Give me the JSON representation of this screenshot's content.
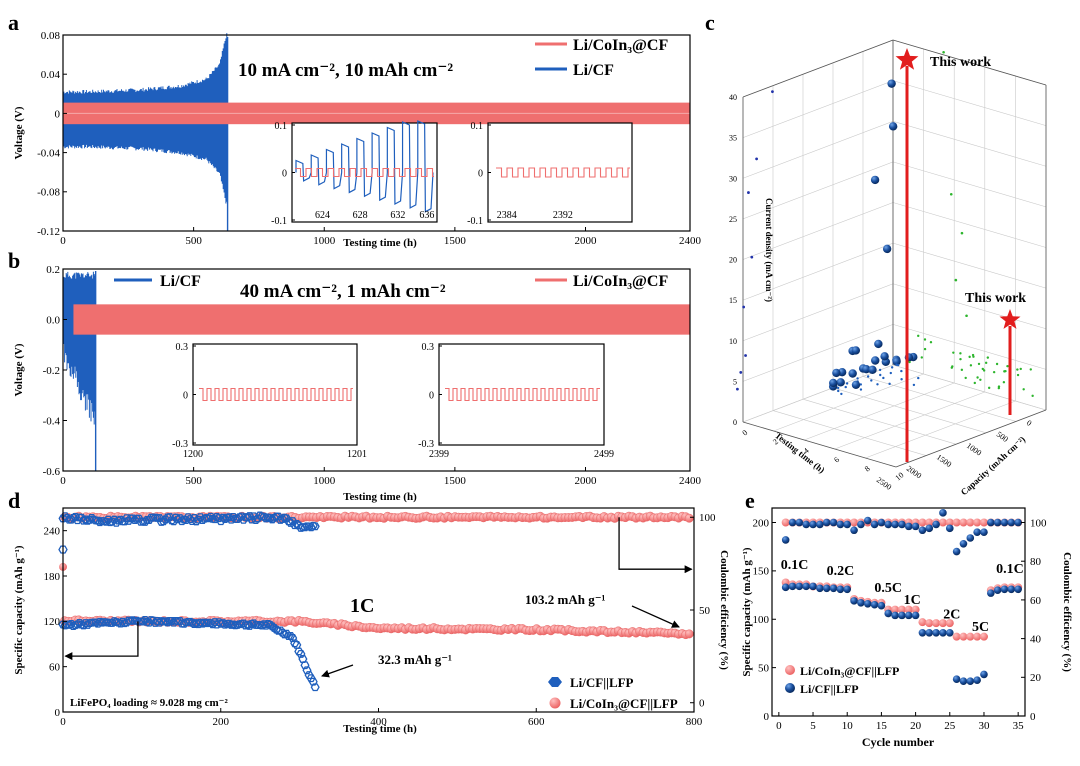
{
  "colors": {
    "blue": "#1f5fbd",
    "red": "#ef6f6f",
    "dark_blue": "#0d3f8a",
    "green": "#2db52d",
    "star": "#e21d1d"
  },
  "chart_data": [
    {
      "id": "a",
      "panel_label": "a",
      "type": "line",
      "annotation": "10 mA cm⁻², 10 mAh cm⁻²",
      "xlabel": "Testing time (h)",
      "ylabel": "Voltage (V)",
      "xlim": [
        0,
        2400
      ],
      "ylim": [
        -0.12,
        0.08
      ],
      "xticks": [
        "0",
        "500",
        "1000",
        "1500",
        "2000",
        "2400"
      ],
      "yticks": [
        "0.08",
        "0.04",
        "0",
        "-0.04",
        "-0.08",
        "-0.12"
      ],
      "series": [
        {
          "name": "Li/CoIn₃@CF",
          "color": "#ef6f6f",
          "band": [
            [
              0,
              0.011
            ],
            [
              2400,
              0.011
            ]
          ]
        },
        {
          "name": "Li/CF",
          "color": "#1f5fbd",
          "band": [
            [
              0,
              0.022
            ],
            [
              100,
              0.022
            ],
            [
              300,
              0.024
            ],
            [
              450,
              0.028
            ],
            [
              550,
              0.035
            ],
            [
              600,
              0.05
            ],
            [
              625,
              0.08
            ]
          ],
          "short_circuit_at": 630
        }
      ],
      "insets": [
        {
          "xticks": [
            "624",
            "628",
            "632",
            "636"
          ],
          "yticks": [
            "0.1",
            "0",
            "-0.1"
          ],
          "xlim": [
            621,
            638
          ],
          "series": [
            "Li/CF",
            "Li/CoIn₃@CF"
          ]
        },
        {
          "xticks": [
            "2384",
            "2392"
          ],
          "yticks": [
            "0.1",
            "0",
            "-0.1"
          ],
          "xlim": [
            2378,
            2397
          ],
          "series": [
            "Li/CoIn₃@CF"
          ]
        }
      ]
    },
    {
      "id": "b",
      "panel_label": "b",
      "type": "line",
      "annotation": "40 mA cm⁻², 1 mAh cm⁻²",
      "xlabel": "Testing time (h)",
      "ylabel": "Voltage (V)",
      "xlim": [
        0,
        2400
      ],
      "ylim": [
        -0.6,
        0.2
      ],
      "xticks": [
        "0",
        "500",
        "1000",
        "1500",
        "2000",
        "2400"
      ],
      "yticks": [
        "0.2",
        "0.0",
        "-0.2",
        "-0.4",
        "-0.6"
      ],
      "series": [
        {
          "name": "Li/CF",
          "color": "#1f5fbd",
          "short_circuit_at": 125
        },
        {
          "name": "Li/CoIn₃@CF",
          "color": "#ef6f6f",
          "band": [
            [
              0,
              0.06
            ],
            [
              2400,
              0.06
            ]
          ]
        }
      ],
      "insets": [
        {
          "xticks": [
            "1200",
            "1201"
          ],
          "yticks": [
            "0.3",
            "0",
            "-0.3"
          ],
          "series": [
            "Li/CoIn₃@CF"
          ]
        },
        {
          "xticks": [
            "2399",
            "2499"
          ],
          "yticks": [
            "0.3",
            "0",
            "-0.3"
          ],
          "series": [
            "Li/CoIn₃@CF"
          ]
        }
      ]
    },
    {
      "id": "c",
      "panel_label": "c",
      "type": "scatter",
      "zlabel": "Current density (mA cm⁻²)",
      "xlabel": "Testing time (h)",
      "ylabel": "Capacity (mAh cm⁻²)",
      "zticks": [
        "0",
        "5",
        "10",
        "15",
        "20",
        "25",
        "30",
        "35",
        "40"
      ],
      "xticks": [
        "0",
        "500",
        "1000",
        "1500",
        "2000",
        "2500"
      ],
      "yticks": [
        "0",
        "2",
        "4",
        "6",
        "8",
        "10"
      ],
      "highlights": [
        {
          "label": "This work",
          "current": 40,
          "capacity": 1,
          "time": 2400
        },
        {
          "label": "This work",
          "current": 10,
          "capacity": 10,
          "time": 2400
        }
      ]
    },
    {
      "id": "d",
      "panel_label": "d",
      "type": "scatter",
      "annotation": "1C",
      "xlabel": "Testing time (h)",
      "ylabel": "Specific capacity (mAh g⁻¹)",
      "y2label": "Coulombic efficiency (%)",
      "xlim": [
        0,
        800
      ],
      "ylim": [
        0,
        270
      ],
      "y2lim": [
        -5,
        105
      ],
      "xticks": [
        "0",
        "200",
        "400",
        "600",
        "800"
      ],
      "yticks": [
        "0",
        "60",
        "120",
        "180",
        "240"
      ],
      "y2ticks": [
        "0",
        "50",
        "100"
      ],
      "note": "LiFePO₄ loading ≈ 9.028 mg cm⁻²",
      "callouts": [
        "32.3 mAh g⁻¹",
        "103.2 mAh g⁻¹"
      ],
      "series": [
        {
          "name": "Li/CF||LFP",
          "color": "#1f5fbd",
          "capacity": [
            [
              0,
              115
            ],
            [
              50,
              118
            ],
            [
              100,
              120
            ],
            [
              200,
              117
            ],
            [
              260,
              115
            ],
            [
              290,
              100
            ],
            [
              300,
              80
            ],
            [
              310,
              55
            ],
            [
              320,
              32.3
            ]
          ],
          "efficiency": [
            [
              0,
              100
            ],
            [
              50,
              98
            ],
            [
              150,
              99
            ],
            [
              200,
              99
            ],
            [
              260,
              100
            ],
            [
              280,
              99
            ],
            [
              300,
              95
            ],
            [
              320,
              95
            ]
          ]
        },
        {
          "name": "Li/CoIn₃@CF||LFP",
          "color": "#ef6f6f",
          "capacity": [
            [
              0,
              121
            ],
            [
              100,
              120
            ],
            [
              300,
              120
            ],
            [
              400,
              111
            ],
            [
              600,
              109
            ],
            [
              800,
              103.2
            ]
          ],
          "efficiency": [
            [
              0,
              100
            ],
            [
              400,
              100
            ],
            [
              800,
              100
            ]
          ]
        }
      ]
    },
    {
      "id": "e",
      "panel_label": "e",
      "type": "scatter",
      "xlabel": "Cycle number",
      "ylabel": "Specific capacity (mAh g⁻¹)",
      "y2label": "Coulombic efficiency (%)",
      "xlim": [
        -1,
        36
      ],
      "ylim": [
        0,
        215
      ],
      "y2lim": [
        0,
        107.5
      ],
      "xticks": [
        "0",
        "5",
        "10",
        "15",
        "20",
        "25",
        "30",
        "35"
      ],
      "yticks": [
        "0",
        "50",
        "100",
        "150",
        "200"
      ],
      "y2ticks": [
        "0",
        "20",
        "40",
        "60",
        "80",
        "100"
      ],
      "rate_labels": [
        "0.1C",
        "0.2C",
        "0.5C",
        "1C",
        "2C",
        "5C",
        "0.1C"
      ],
      "series": [
        {
          "name": "Li/CoIn₃@CF||LFP",
          "color": "#ef6f6f",
          "capacity": [
            138,
            136,
            136,
            136,
            134,
            134,
            134,
            133,
            133,
            133,
            121,
            119,
            118,
            117,
            117,
            110,
            110,
            110,
            110,
            110,
            97,
            96,
            96,
            96,
            96,
            82,
            82,
            82,
            82,
            82,
            130,
            132,
            133,
            133,
            133
          ],
          "efficiency": [
            100,
            100,
            100,
            100,
            100,
            100,
            100,
            100,
            100,
            100,
            100,
            100,
            100,
            100,
            100,
            100,
            100,
            100,
            100,
            100,
            100,
            100,
            100,
            100,
            100,
            100,
            100,
            100,
            100,
            100,
            100,
            100,
            100,
            100,
            100
          ]
        },
        {
          "name": "Li/CF||LFP",
          "color": "#1f5fbd",
          "capacity": [
            133,
            134,
            134,
            134,
            134,
            132,
            132,
            132,
            131,
            131,
            119,
            117,
            116,
            115,
            114,
            106,
            104,
            104,
            104,
            104,
            86,
            86,
            86,
            86,
            86,
            38,
            36,
            36,
            37,
            43,
            127,
            130,
            131,
            131,
            131
          ],
          "efficiency": [
            91,
            100,
            100,
            99,
            99,
            99,
            100,
            100,
            99,
            99,
            96,
            99,
            101,
            99,
            100,
            99,
            99,
            99,
            98,
            98,
            96,
            97,
            99,
            105,
            97,
            85,
            89,
            92,
            95,
            95,
            100,
            100,
            100,
            100,
            100
          ]
        }
      ]
    }
  ]
}
